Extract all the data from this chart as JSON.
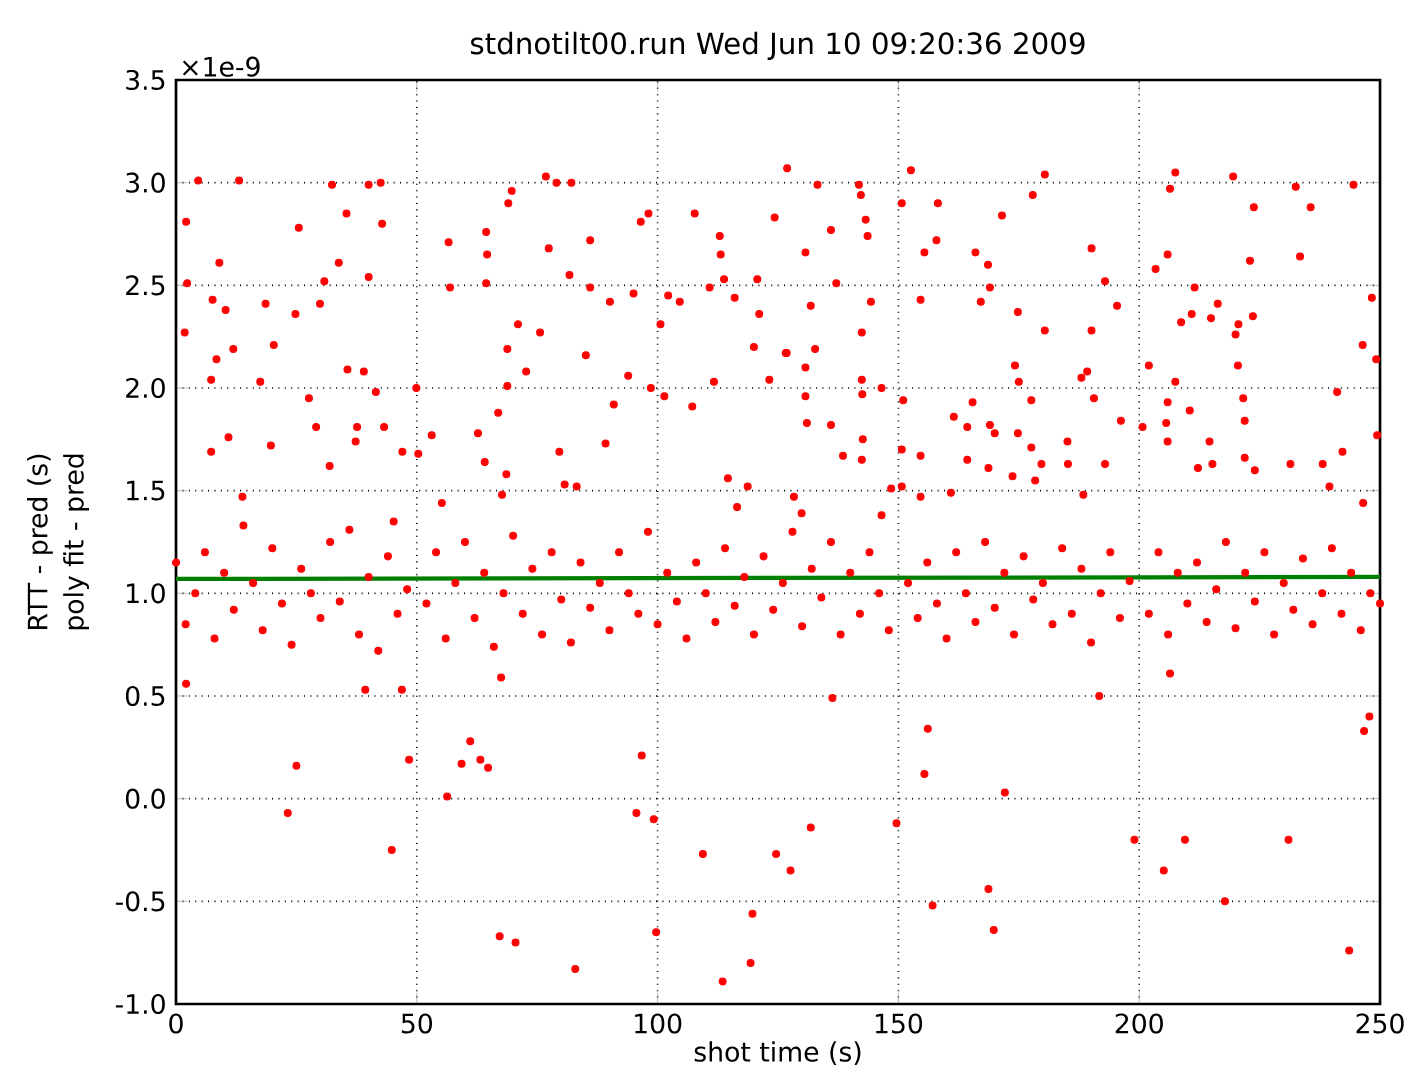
{
  "chart_data": {
    "type": "scatter",
    "title": "stdnotilt00.run  Wed Jun 10 09:20:36 2009",
    "xlabel": "shot time (s)",
    "ylabel": "RTT - pred (s)",
    "annotations": [
      "poly fit - pred",
      "×1e-9"
    ],
    "xlim": [
      0,
      250
    ],
    "xticks": [
      0,
      50,
      100,
      150,
      200,
      250
    ],
    "ylim": [
      -1.0,
      3.5
    ],
    "yticks": [
      {
        "value": -1.0,
        "label": "-1.0"
      },
      {
        "value": -0.5,
        "label": "-0.5"
      },
      {
        "value": 0.0,
        "label": "0.0"
      },
      {
        "value": 0.5,
        "label": "0.5"
      },
      {
        "value": 1.0,
        "label": "1.0"
      },
      {
        "value": 1.5,
        "label": "1.5"
      },
      {
        "value": 2.0,
        "label": "2.0"
      },
      {
        "value": 2.5,
        "label": "2.5"
      },
      {
        "value": 3.0,
        "label": "3.0"
      },
      {
        "value": 3.5,
        "label": "3.5"
      }
    ],
    "grid": true,
    "marker": "circle",
    "series": [
      {
        "color": "#ff0000",
        "x": [
          4.6,
          13.1,
          2.1,
          2.3,
          1.8,
          9.0,
          7.6,
          10.3,
          11.9,
          7.3,
          8.4,
          7.3,
          10.9,
          18.6,
          20.3,
          17.5,
          19.7,
          13.8,
          25.5,
          24.8,
          27.6,
          29.1,
          29.9,
          30.8,
          32.4,
          31.9,
          33.8,
          35.4,
          35.6,
          37.6,
          37.3,
          39.0,
          40.0,
          40.0,
          42.5,
          42.8,
          41.5,
          43.2,
          45.2,
          49.9,
          47.0,
          50.3,
          53.1,
          56.6,
          56.9,
          55.2,
          64.4,
          64.6,
          64.4,
          62.7,
          64.1,
          66.9,
          67.7,
          68.6,
          69.7,
          69.0,
          68.8,
          68.8,
          71.0,
          72.7,
          75.6,
          76.8,
          79.0,
          82.1,
          77.4,
          79.6,
          80.7,
          83.2,
          81.7,
          85.1,
          86.0,
          86.0,
          90.1,
          90.9,
          89.2,
          93.9,
          95.0,
          96.5,
          98.1,
          100.6,
          98.6,
          101.4,
          102.2,
          104.6,
          107.2,
          107.7,
          110.8,
          112.9,
          113.1,
          113.8,
          111.7,
          114.6,
          116.0,
          116.5,
          120.0,
          120.7,
          121.1,
          118.7,
          123.2,
          124.3,
          126.9,
          126.8,
          128.3,
          2.1,
          39.3,
          46.9,
          67.5,
          61.1,
          59.3,
          63.2,
          64.8,
          25.0,
          48.4,
          23.2,
          44.8,
          56.3,
          96.7,
          95.6,
          99.2,
          99.7,
          67.2,
          70.5,
          82.9,
          109.4,
          113.5,
          119.7,
          119.3,
          124.6,
          127.6,
          133.2,
          141.8,
          142.2,
          143.2,
          143.6,
          130.7,
          136.0,
          137.1,
          131.8,
          142.4,
          144.3,
          126.6,
          132.7,
          130.7,
          130.7,
          142.4,
          142.5,
          146.5,
          131.0,
          136.0,
          138.5,
          142.6,
          142.4,
          129.9,
          146.5,
          148.5,
          152.6,
          150.7,
          155.4,
          157.9,
          158.2,
          154.6,
          151.0,
          150.7,
          154.6,
          154.6,
          150.7,
          161.5,
          160.9,
          165.4,
          164.3,
          164.3,
          166.0,
          168.6,
          167.1,
          169.0,
          169.0,
          170.0,
          168.7,
          171.5,
          173.7,
          174.2,
          175.0,
          174.8,
          174.8,
          177.6,
          177.9,
          180.4,
          180.4,
          178.4,
          177.6,
          179.7,
          185.1,
          185.2,
          190.1,
          190.1,
          192.9,
          195.4,
          188.0,
          189.2,
          190.6,
          192.9,
          196.2,
          188.4,
          200.7,
          202.0,
          203.4,
          205.9,
          206.4,
          207.5,
          208.7,
          210.9,
          211.5,
          214.9,
          216.3,
          220.0,
          220.6,
          220.5,
          221.6,
          223.6,
          223.0,
          223.8,
          219.5,
          205.9,
          205.6,
          205.9,
          207.5,
          210.5,
          212.2,
          214.6,
          215.2,
          221.9,
          221.9,
          224.0,
          231.4,
          232.5,
          233.4,
          235.6,
          238.1,
          239.5,
          241.1,
          242.2,
          244.5,
          246.4,
          248.3,
          249.2,
          249.4,
          246.5,
          136.3,
          131.8,
          149.6,
          156.1,
          155.4,
          157.1,
          168.7,
          169.8,
          172.1,
          191.7,
          206.4,
          199.0,
          205.1,
          209.5,
          217.8,
          231.0,
          243.6,
          247.8,
          246.7,
          0,
          2,
          4,
          6,
          8,
          10,
          12,
          14,
          16,
          18,
          20,
          22,
          24,
          26,
          28,
          30,
          32,
          34,
          36,
          38,
          40,
          42,
          44,
          46,
          48,
          52,
          54,
          56,
          58,
          60,
          62,
          64,
          66,
          68,
          70,
          72,
          74,
          76,
          78,
          80,
          82,
          84,
          86,
          88,
          90,
          92,
          94,
          96,
          98,
          100,
          102,
          104,
          106,
          108,
          110,
          112,
          114,
          116,
          118,
          120,
          122,
          124,
          126,
          128,
          130,
          132,
          134,
          136,
          138,
          140,
          142,
          144,
          146,
          148,
          152,
          154,
          156,
          158,
          160,
          162,
          164,
          166,
          168,
          170,
          172,
          174,
          176,
          178,
          180,
          182,
          184,
          186,
          188,
          190,
          192,
          194,
          196,
          198,
          202,
          204,
          206,
          208,
          210,
          212,
          214,
          216,
          218,
          220,
          222,
          224,
          226,
          228,
          230,
          232,
          234,
          236,
          238,
          240,
          242,
          244,
          246,
          248,
          250
        ],
        "values": [
          3.01,
          3.01,
          2.81,
          2.51,
          2.27,
          2.61,
          2.43,
          2.38,
          2.19,
          2.04,
          2.14,
          1.69,
          1.76,
          2.41,
          2.21,
          2.03,
          1.72,
          1.47,
          2.78,
          2.36,
          1.95,
          1.81,
          2.41,
          2.52,
          2.99,
          1.62,
          2.61,
          2.85,
          2.09,
          1.81,
          1.74,
          2.08,
          2.99,
          2.54,
          3.0,
          2.8,
          1.98,
          1.81,
          1.35,
          2.0,
          1.69,
          1.68,
          1.77,
          2.71,
          2.49,
          1.44,
          2.76,
          2.65,
          2.51,
          1.78,
          1.64,
          1.88,
          1.48,
          1.58,
          2.96,
          2.9,
          2.19,
          2.01,
          2.31,
          2.08,
          2.27,
          3.03,
          3.0,
          3.0,
          2.68,
          1.69,
          1.53,
          1.52,
          2.55,
          2.16,
          2.72,
          2.49,
          2.42,
          1.92,
          1.73,
          2.06,
          2.46,
          2.81,
          2.85,
          2.31,
          2.0,
          1.96,
          2.45,
          2.42,
          1.91,
          2.85,
          2.49,
          2.74,
          2.65,
          2.53,
          2.03,
          1.56,
          2.44,
          1.42,
          2.2,
          2.53,
          2.36,
          1.52,
          2.04,
          2.83,
          3.07,
          2.17,
          1.47,
          0.56,
          0.53,
          0.53,
          0.59,
          0.28,
          0.17,
          0.19,
          0.15,
          0.16,
          0.19,
          -0.07,
          -0.25,
          0.01,
          0.21,
          -0.07,
          -0.1,
          -0.65,
          -0.67,
          -0.7,
          -0.83,
          -0.27,
          -0.89,
          -0.56,
          -0.8,
          -0.27,
          -0.35,
          2.99,
          2.99,
          2.94,
          2.82,
          2.74,
          2.66,
          2.77,
          2.51,
          2.4,
          2.27,
          2.42,
          2.17,
          2.19,
          2.1,
          1.96,
          2.04,
          1.97,
          2.0,
          1.83,
          1.82,
          1.67,
          1.75,
          1.65,
          1.39,
          1.38,
          1.51,
          3.06,
          2.9,
          2.66,
          2.72,
          2.9,
          2.43,
          1.94,
          1.7,
          1.67,
          1.47,
          1.52,
          1.86,
          1.49,
          1.93,
          1.81,
          1.65,
          2.66,
          2.6,
          2.42,
          2.49,
          1.82,
          1.78,
          1.61,
          2.84,
          1.57,
          2.11,
          2.03,
          2.37,
          1.78,
          1.94,
          2.94,
          3.04,
          2.28,
          1.55,
          1.71,
          1.63,
          1.74,
          1.63,
          2.68,
          2.28,
          2.52,
          2.4,
          2.05,
          2.08,
          1.95,
          1.63,
          1.84,
          1.48,
          1.81,
          2.11,
          2.58,
          2.65,
          2.97,
          3.05,
          2.32,
          2.36,
          2.49,
          2.34,
          2.41,
          2.26,
          2.31,
          2.11,
          1.95,
          2.35,
          2.62,
          2.88,
          3.03,
          1.93,
          1.83,
          1.74,
          2.03,
          1.89,
          1.61,
          1.74,
          1.63,
          1.84,
          1.66,
          1.6,
          1.63,
          2.98,
          2.64,
          2.88,
          1.63,
          1.52,
          1.98,
          1.69,
          2.99,
          2.21,
          2.44,
          2.14,
          1.77,
          1.44,
          0.49,
          -0.14,
          -0.12,
          0.34,
          0.12,
          -0.52,
          -0.44,
          -0.64,
          0.03,
          0.5,
          0.61,
          -0.2,
          -0.35,
          -0.2,
          -0.5,
          -0.2,
          -0.74,
          0.4,
          0.33,
          1.15,
          0.85,
          1.0,
          1.2,
          0.78,
          1.1,
          0.92,
          1.33,
          1.05,
          0.82,
          1.22,
          0.95,
          0.75,
          1.12,
          1.0,
          0.88,
          1.25,
          0.96,
          1.31,
          0.8,
          1.08,
          0.72,
          1.18,
          0.9,
          1.02,
          0.95,
          1.2,
          0.78,
          1.05,
          1.25,
          0.88,
          1.1,
          0.74,
          1.0,
          1.28,
          0.9,
          1.12,
          0.8,
          1.2,
          0.97,
          0.76,
          1.15,
          0.93,
          1.05,
          0.82,
          1.2,
          1.0,
          0.9,
          1.3,
          0.85,
          1.1,
          0.96,
          0.78,
          1.15,
          1.0,
          0.86,
          1.22,
          0.94,
          1.08,
          0.8,
          1.18,
          0.92,
          1.05,
          1.3,
          0.84,
          1.12,
          0.98,
          1.25,
          0.8,
          1.1,
          0.9,
          1.2,
          1.0,
          0.82,
          1.05,
          0.88,
          1.15,
          0.95,
          0.78,
          1.2,
          1.0,
          0.86,
          1.25,
          0.93,
          1.1,
          0.8,
          1.18,
          0.97,
          1.05,
          0.85,
          1.22,
          0.9,
          1.12,
          0.76,
          1.0,
          1.2,
          0.88,
          1.06,
          0.9,
          1.2,
          0.8,
          1.1,
          0.95,
          1.15,
          0.86,
          1.02,
          1.25,
          0.83,
          1.1,
          0.96,
          1.2,
          0.8,
          1.05,
          0.92,
          1.17,
          0.85,
          1.0,
          1.22,
          0.9,
          1.1,
          0.82,
          1.0,
          0.95
        ]
      },
      {
        "type": "line",
        "color": "#008000",
        "marker": "none",
        "x": [
          0,
          250
        ],
        "values": [
          1.07,
          1.08
        ]
      }
    ]
  }
}
